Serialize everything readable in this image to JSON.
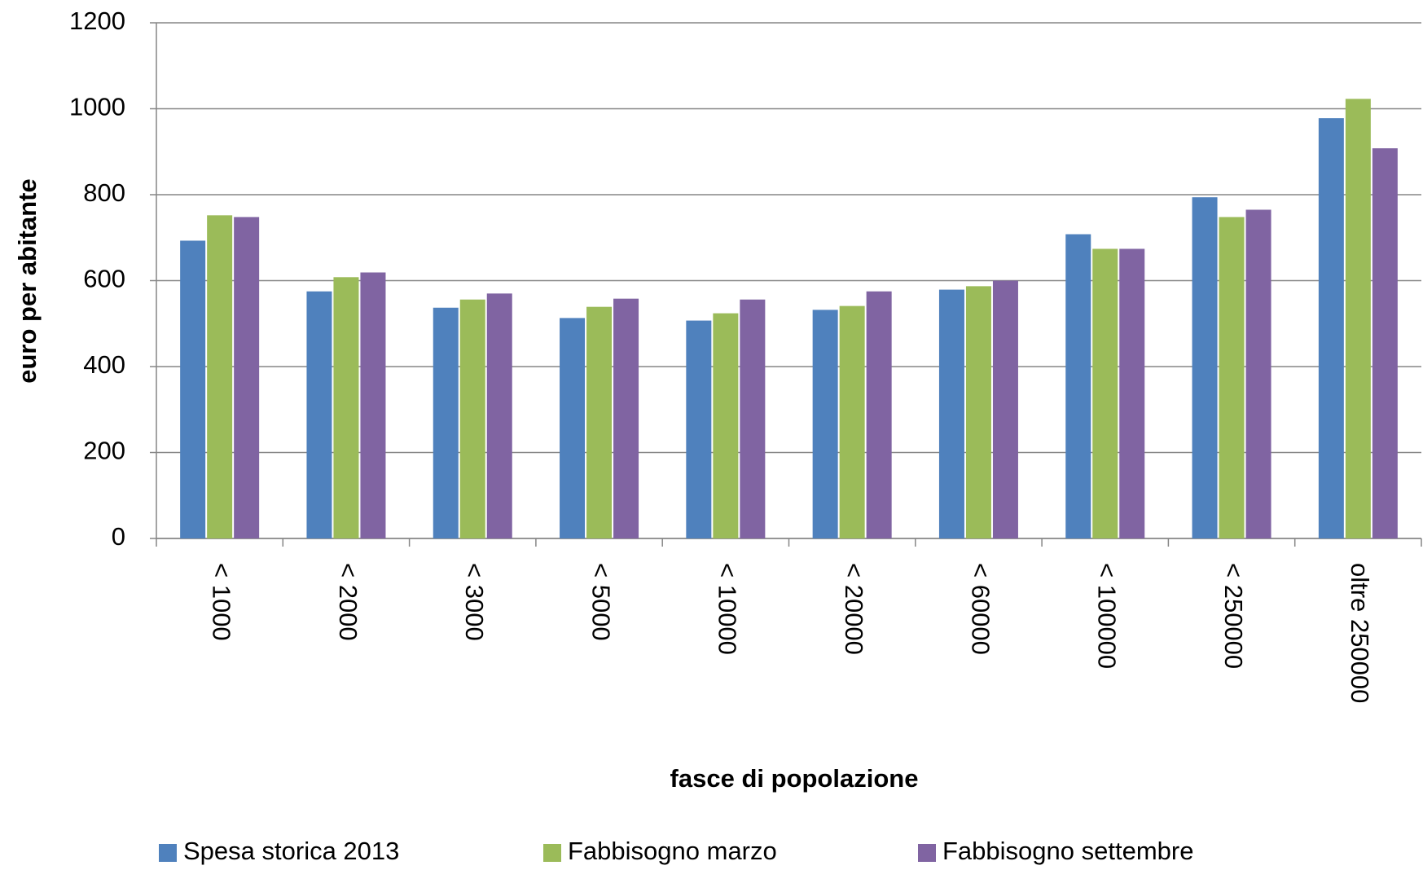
{
  "chart_data": {
    "type": "bar",
    "x_label": "fasce di popolazione",
    "y_label": "euro per abitante",
    "categories": [
      "< 1000",
      "< 2000",
      "< 3000",
      "< 5000",
      "< 10000",
      "< 20000",
      "< 60000",
      "< 100000",
      "< 250000",
      "oltre 250000"
    ],
    "series": [
      {
        "name": "Spesa storica 2013",
        "color": "#4f81bd",
        "values": [
          693,
          575,
          537,
          513,
          507,
          532,
          579,
          708,
          794,
          978
        ]
      },
      {
        "name": "Fabbisogno marzo",
        "color": "#9bbb59",
        "values": [
          752,
          608,
          556,
          539,
          524,
          541,
          587,
          674,
          748,
          1023
        ]
      },
      {
        "name": "Fabbisogno settembre",
        "color": "#8064a2",
        "values": [
          748,
          619,
          570,
          558,
          556,
          575,
          600,
          674,
          765,
          908
        ]
      }
    ],
    "ylim": [
      0,
      1200
    ],
    "yticks": [
      0,
      200,
      400,
      600,
      800,
      1000,
      1200
    ],
    "grid": true,
    "legend": "bottom"
  }
}
